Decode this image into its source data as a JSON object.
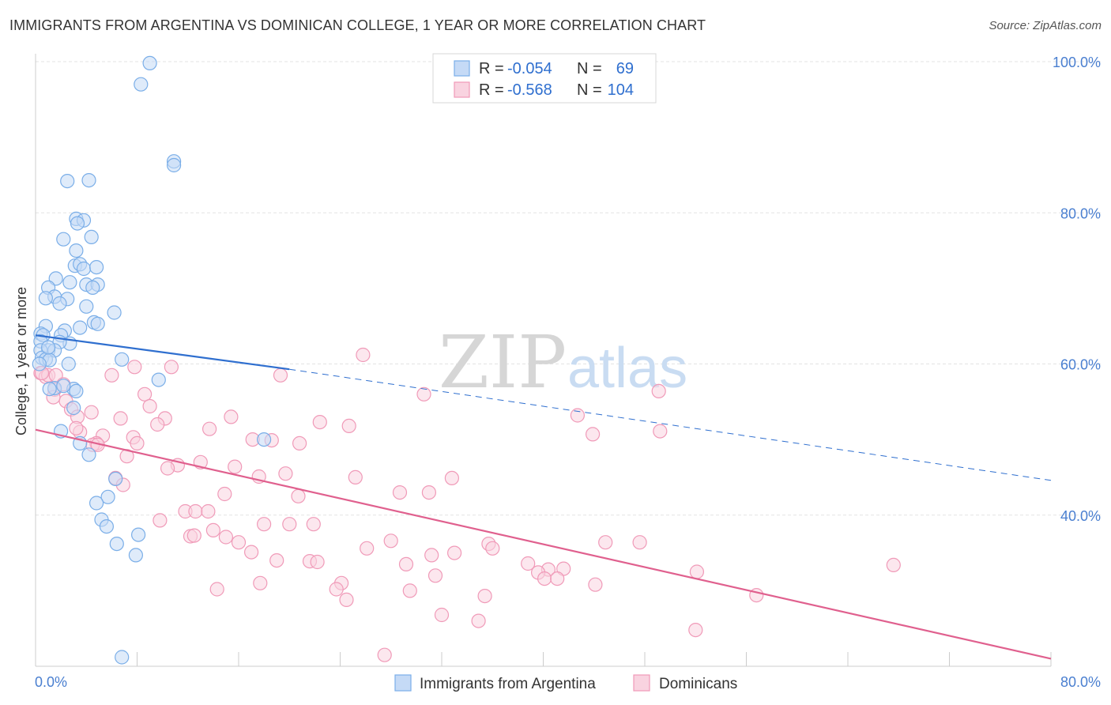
{
  "title": "IMMIGRANTS FROM ARGENTINA VS DOMINICAN COLLEGE, 1 YEAR OR MORE CORRELATION CHART",
  "source": "Source: ZipAtlas.com",
  "watermark": {
    "zip": "ZIP",
    "atlas": "atlas"
  },
  "colors": {
    "blue": "#7aaee8",
    "blue_fill": "#c5daf6",
    "blue_line": "#2f6fcf",
    "pink": "#f09ab8",
    "pink_fill": "#f9d3e0",
    "pink_line": "#e0608e",
    "axis_label": "#4a7fd0",
    "grid": "#e3e3e3"
  },
  "legend_top": {
    "rows": [
      {
        "r_label": "R =",
        "r_value": "-0.054",
        "n_label": "N =",
        "n_value": "69"
      },
      {
        "r_label": "R =",
        "r_value": "-0.568",
        "n_label": "N =",
        "n_value": "104"
      }
    ]
  },
  "legend_bottom": [
    "Immigrants from Argentina",
    "Dominicans"
  ],
  "chart_data": {
    "type": "scatter",
    "title": "IMMIGRANTS FROM ARGENTINA VS DOMINICAN COLLEGE, 1 YEAR OR MORE CORRELATION CHART",
    "xlabel": "",
    "ylabel": "College, 1 year or more",
    "xlim": [
      0,
      80
    ],
    "ylim": [
      20,
      100
    ],
    "x_tick_labels": [
      "0.0%",
      "80.0%"
    ],
    "y_ticks": [
      40,
      60,
      80,
      100
    ],
    "y_tick_labels": [
      "40.0%",
      "60.0%",
      "80.0%",
      "100.0%"
    ],
    "grid": true,
    "legend_position": "top-center",
    "series": [
      {
        "name": "Immigrants from Argentina",
        "R": -0.054,
        "N": 69,
        "trend": {
          "x": [
            0,
            20
          ],
          "y": [
            63.8,
            59.3
          ]
        },
        "trend_dashed": {
          "x": [
            20,
            80
          ],
          "y": [
            59.3,
            44.6
          ]
        },
        "points": [
          [
            9.0,
            99.8
          ],
          [
            8.3,
            97.0
          ],
          [
            10.9,
            86.8
          ],
          [
            10.9,
            86.3
          ],
          [
            2.5,
            84.2
          ],
          [
            4.2,
            84.3
          ],
          [
            3.2,
            79.2
          ],
          [
            3.8,
            79.0
          ],
          [
            3.3,
            78.6
          ],
          [
            2.2,
            76.5
          ],
          [
            4.4,
            76.8
          ],
          [
            3.2,
            75.0
          ],
          [
            3.1,
            73.0
          ],
          [
            3.5,
            73.2
          ],
          [
            3.8,
            72.6
          ],
          [
            4.8,
            72.8
          ],
          [
            1.6,
            71.3
          ],
          [
            2.7,
            70.8
          ],
          [
            4.0,
            70.5
          ],
          [
            4.9,
            70.5
          ],
          [
            1.0,
            70.1
          ],
          [
            4.5,
            70.1
          ],
          [
            1.5,
            68.9
          ],
          [
            2.5,
            68.6
          ],
          [
            0.8,
            68.7
          ],
          [
            1.9,
            68.0
          ],
          [
            4.0,
            67.6
          ],
          [
            6.2,
            66.8
          ],
          [
            4.6,
            65.5
          ],
          [
            4.9,
            65.3
          ],
          [
            0.8,
            65.0
          ],
          [
            3.5,
            64.8
          ],
          [
            2.3,
            64.4
          ],
          [
            2.0,
            63.8
          ],
          [
            0.4,
            64.0
          ],
          [
            0.6,
            63.8
          ],
          [
            0.4,
            63.0
          ],
          [
            2.7,
            62.7
          ],
          [
            1.9,
            62.9
          ],
          [
            1.0,
            61.8
          ],
          [
            1.5,
            61.8
          ],
          [
            0.4,
            61.8
          ],
          [
            0.5,
            60.8
          ],
          [
            0.8,
            60.6
          ],
          [
            1.1,
            60.5
          ],
          [
            2.6,
            60.0
          ],
          [
            0.3,
            60.0
          ],
          [
            6.8,
            60.6
          ],
          [
            9.7,
            57.9
          ],
          [
            1.5,
            56.8
          ],
          [
            3.0,
            56.7
          ],
          [
            1.1,
            56.7
          ],
          [
            2.2,
            57.1
          ],
          [
            3.0,
            54.2
          ],
          [
            2.0,
            51.1
          ],
          [
            3.5,
            49.5
          ],
          [
            4.2,
            48.0
          ],
          [
            18.0,
            50.0
          ],
          [
            6.3,
            44.8
          ],
          [
            5.7,
            42.4
          ],
          [
            4.8,
            41.6
          ],
          [
            5.2,
            39.4
          ],
          [
            5.6,
            38.5
          ],
          [
            8.1,
            37.4
          ],
          [
            6.4,
            36.2
          ],
          [
            7.9,
            34.7
          ],
          [
            6.8,
            21.2
          ],
          [
            1.0,
            62.2
          ],
          [
            3.2,
            56.4
          ]
        ]
      },
      {
        "name": "Dominicans",
        "R": -0.568,
        "N": 104,
        "trend": {
          "x": [
            0,
            80
          ],
          "y": [
            51.3,
            21.0
          ]
        },
        "points": [
          [
            25.8,
            61.2
          ],
          [
            0.4,
            58.8
          ],
          [
            0.8,
            58.3
          ],
          [
            1.0,
            58.5
          ],
          [
            1.6,
            58.5
          ],
          [
            2.2,
            57.3
          ],
          [
            6.0,
            58.5
          ],
          [
            7.8,
            59.6
          ],
          [
            10.7,
            59.6
          ],
          [
            19.3,
            58.5
          ],
          [
            30.6,
            56.0
          ],
          [
            49.1,
            56.4
          ],
          [
            1.5,
            56.6
          ],
          [
            8.6,
            56.0
          ],
          [
            2.4,
            55.1
          ],
          [
            1.4,
            55.6
          ],
          [
            2.8,
            54.0
          ],
          [
            9.0,
            54.4
          ],
          [
            4.4,
            53.6
          ],
          [
            3.3,
            53.0
          ],
          [
            6.7,
            52.8
          ],
          [
            10.2,
            52.8
          ],
          [
            15.4,
            53.0
          ],
          [
            22.4,
            52.3
          ],
          [
            24.7,
            51.8
          ],
          [
            42.7,
            53.2
          ],
          [
            13.7,
            51.4
          ],
          [
            9.6,
            52.0
          ],
          [
            3.5,
            51.0
          ],
          [
            49.2,
            51.1
          ],
          [
            43.9,
            50.7
          ],
          [
            5.3,
            50.5
          ],
          [
            7.7,
            50.3
          ],
          [
            17.1,
            50.0
          ],
          [
            18.6,
            49.9
          ],
          [
            20.8,
            49.5
          ],
          [
            4.8,
            49.5
          ],
          [
            4.5,
            49.3
          ],
          [
            8.0,
            49.5
          ],
          [
            7.2,
            47.8
          ],
          [
            13.0,
            47.0
          ],
          [
            11.2,
            46.6
          ],
          [
            10.4,
            46.2
          ],
          [
            15.7,
            46.4
          ],
          [
            19.7,
            45.5
          ],
          [
            17.6,
            45.1
          ],
          [
            25.2,
            45.0
          ],
          [
            32.8,
            44.9
          ],
          [
            6.3,
            44.9
          ],
          [
            6.9,
            44.0
          ],
          [
            14.9,
            42.8
          ],
          [
            28.7,
            43.0
          ],
          [
            31.0,
            43.0
          ],
          [
            20.7,
            42.5
          ],
          [
            11.8,
            40.5
          ],
          [
            12.6,
            40.5
          ],
          [
            13.6,
            40.5
          ],
          [
            9.8,
            39.3
          ],
          [
            18.0,
            38.8
          ],
          [
            20.0,
            38.8
          ],
          [
            21.9,
            38.8
          ],
          [
            14.0,
            38.0
          ],
          [
            12.2,
            37.2
          ],
          [
            12.5,
            37.3
          ],
          [
            15.0,
            37.1
          ],
          [
            16.0,
            36.4
          ],
          [
            28.0,
            36.6
          ],
          [
            35.7,
            36.2
          ],
          [
            36.0,
            35.6
          ],
          [
            44.9,
            36.4
          ],
          [
            47.6,
            36.4
          ],
          [
            26.1,
            35.6
          ],
          [
            17.0,
            35.1
          ],
          [
            31.2,
            34.7
          ],
          [
            33.0,
            35.0
          ],
          [
            19.0,
            34.0
          ],
          [
            21.6,
            33.9
          ],
          [
            22.2,
            33.8
          ],
          [
            29.2,
            33.5
          ],
          [
            38.8,
            33.6
          ],
          [
            40.4,
            32.8
          ],
          [
            41.6,
            32.9
          ],
          [
            39.6,
            32.4
          ],
          [
            52.1,
            32.5
          ],
          [
            31.5,
            32.0
          ],
          [
            67.6,
            33.4
          ],
          [
            40.1,
            31.6
          ],
          [
            41.1,
            31.6
          ],
          [
            17.7,
            31.0
          ],
          [
            24.1,
            31.0
          ],
          [
            44.1,
            30.8
          ],
          [
            14.3,
            30.2
          ],
          [
            23.7,
            30.2
          ],
          [
            29.5,
            30.0
          ],
          [
            35.4,
            29.3
          ],
          [
            56.8,
            29.4
          ],
          [
            24.5,
            28.8
          ],
          [
            32.0,
            26.8
          ],
          [
            34.9,
            26.0
          ],
          [
            52.0,
            24.8
          ],
          [
            27.5,
            21.5
          ],
          [
            0.5,
            58.8
          ],
          [
            4.9,
            49.3
          ],
          [
            3.2,
            51.5
          ]
        ]
      }
    ]
  }
}
